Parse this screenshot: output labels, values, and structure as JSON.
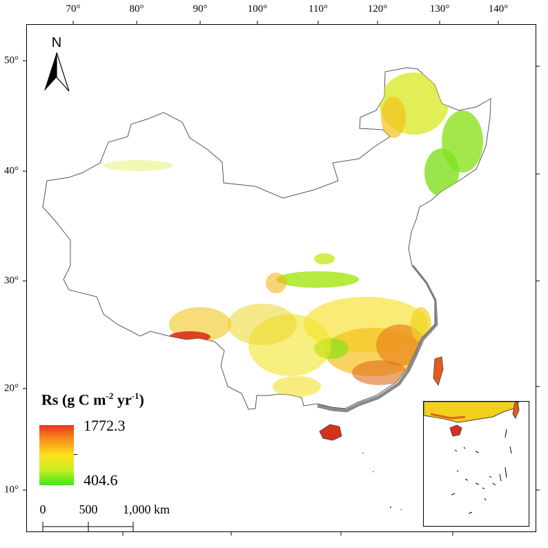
{
  "map": {
    "longitude_labels": [
      "70°",
      "80°",
      "90°",
      "100°",
      "110°",
      "120°",
      "130°",
      "140°"
    ],
    "latitude_labels": [
      "50°",
      "40°",
      "30°",
      "20°",
      "10°"
    ],
    "north_label": "N"
  },
  "legend": {
    "title_main": "Rs (g C m",
    "title_sup1": "-2",
    "title_mid": " yr",
    "title_sup2": "-1",
    "title_end": ")",
    "max": "1772.3",
    "min": "404.6",
    "colors": [
      "#e8341c",
      "#f48a1c",
      "#fde21a",
      "#c8ee22",
      "#3ce61a"
    ]
  },
  "scale_bar": {
    "labels": [
      "0",
      "500",
      "1,000 km"
    ]
  }
}
